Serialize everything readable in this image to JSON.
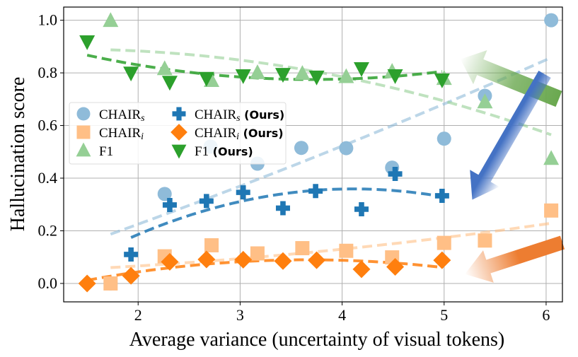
{
  "chart_data": {
    "type": "scatter",
    "title": "",
    "xlabel": "Average variance (uncertainty of visual tokens)",
    "ylabel": "Hallucination score",
    "xlim": [
      1.27,
      6.16
    ],
    "ylim": [
      -0.07,
      1.05
    ],
    "xticks": [
      "2",
      "3",
      "4",
      "5",
      "6"
    ],
    "xtick_values": [
      2,
      3,
      4,
      5,
      6
    ],
    "yticks": [
      "0.0",
      "0.2",
      "0.4",
      "0.6",
      "0.8",
      "1.0"
    ],
    "ytick_values": [
      0,
      0.2,
      0.4,
      0.6,
      0.8,
      1.0
    ],
    "grid": true,
    "legend_placement": "center-left",
    "trend_lines": "dashed quadratic fit per series",
    "series": [
      {
        "name": "CHAIR",
        "sub": "s",
        "suffix": "",
        "marker": "circle",
        "color": "#8fbbd9",
        "x": [
          1.73,
          2.26,
          2.71,
          3.17,
          3.6,
          4.04,
          4.49,
          5.0,
          5.4,
          6.05
        ],
        "y": [
          0.0,
          0.34,
          0.52,
          0.455,
          0.515,
          0.514,
          0.44,
          0.55,
          0.713,
          1.0
        ]
      },
      {
        "name": "CHAIR",
        "sub": "i",
        "suffix": "",
        "marker": "square",
        "color": "#ffbf86",
        "x": [
          1.73,
          2.26,
          2.72,
          3.17,
          3.61,
          4.04,
          4.49,
          5.0,
          5.4,
          6.05
        ],
        "y": [
          0.0,
          0.103,
          0.145,
          0.114,
          0.134,
          0.124,
          0.099,
          0.154,
          0.163,
          0.277
        ]
      },
      {
        "name": "F1",
        "sub": "",
        "suffix": "",
        "marker": "triangle-up",
        "color": "#95cf95",
        "x": [
          1.73,
          2.26,
          2.72,
          3.17,
          3.61,
          4.04,
          4.49,
          5.0,
          5.4,
          6.05
        ],
        "y": [
          0.998,
          0.815,
          0.77,
          0.8,
          0.797,
          0.785,
          0.805,
          0.778,
          0.689,
          0.474
        ]
      },
      {
        "name": "CHAIR",
        "sub": "s",
        "suffix": "(Ours)",
        "marker": "plus",
        "color": "#1f77b4",
        "x": [
          1.93,
          2.31,
          2.67,
          3.03,
          3.42,
          3.74,
          4.19,
          4.52,
          4.98
        ],
        "y": [
          0.11,
          0.298,
          0.313,
          0.346,
          0.286,
          0.351,
          0.282,
          0.416,
          0.333
        ]
      },
      {
        "name": "CHAIR",
        "sub": "i",
        "suffix": "(Ours)",
        "marker": "diamond",
        "color": "#ff7f0e",
        "x": [
          1.5,
          1.93,
          2.31,
          2.67,
          3.03,
          3.42,
          3.75,
          4.19,
          4.52,
          4.98
        ],
        "y": [
          0.0,
          0.029,
          0.082,
          0.091,
          0.09,
          0.085,
          0.088,
          0.054,
          0.063,
          0.088
        ]
      },
      {
        "name": "F1",
        "sub": "",
        "suffix": "(Ours)",
        "marker": "triangle-down",
        "color": "#2ca02c",
        "x": [
          1.5,
          1.93,
          2.31,
          2.67,
          3.03,
          3.42,
          3.75,
          4.19,
          4.52,
          4.98
        ],
        "y": [
          0.919,
          0.8,
          0.765,
          0.78,
          0.79,
          0.795,
          0.785,
          0.817,
          0.79,
          0.774
        ]
      }
    ],
    "annotation_arrows": [
      {
        "color": "#6aa84f",
        "direction": "up-left"
      },
      {
        "color": "#4472c4",
        "direction": "down-left"
      },
      {
        "color": "#ed7d31",
        "direction": "left"
      }
    ]
  }
}
